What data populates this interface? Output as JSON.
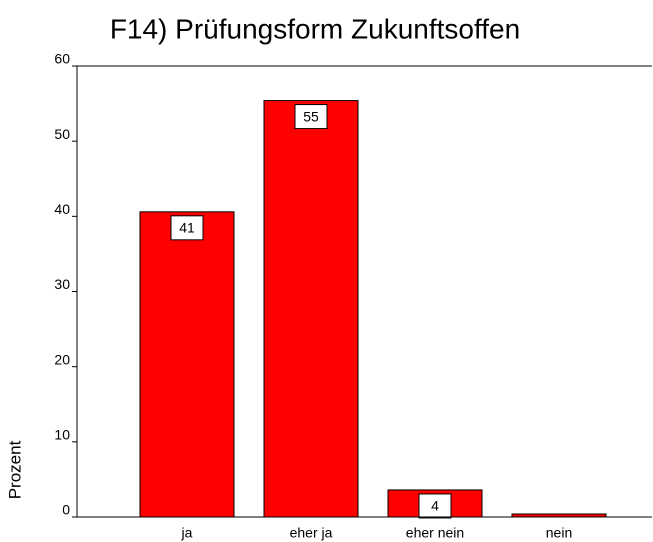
{
  "chart_data": {
    "type": "bar",
    "title": "F14) Prüfungsform Zukunftsoffen",
    "y_label": "Prozent",
    "categories": [
      "ja",
      "eher ja",
      "eher nein",
      "nein"
    ],
    "values": [
      40.6,
      55.4,
      3.6,
      0.4
    ],
    "value_labels": [
      "41",
      "55",
      "4",
      null
    ],
    "color": "#ff0000",
    "ylim": [
      0,
      60
    ],
    "yticks": [
      0,
      10,
      20,
      30,
      40,
      50,
      60
    ]
  }
}
